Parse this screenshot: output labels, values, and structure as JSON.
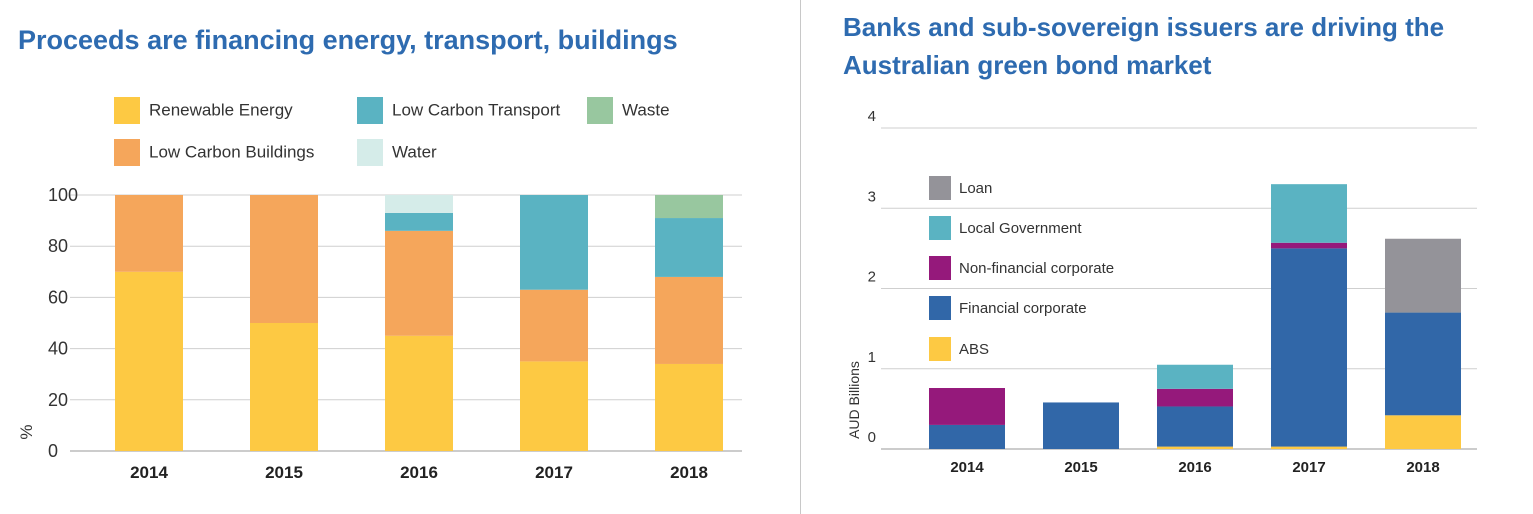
{
  "left": {
    "title": "Proceeds are financing energy, transport, buildings"
  },
  "right": {
    "title": "Banks and sub-sovereign issuers are driving the Australian green bond market"
  },
  "chart_data": [
    {
      "type": "bar",
      "stacked": true,
      "title": "Proceeds are financing energy, transport, buildings",
      "ylabel": "%",
      "xlabel": "",
      "ylim": [
        0,
        100
      ],
      "yticks": [
        0,
        20,
        40,
        60,
        80,
        100
      ],
      "grid": true,
      "legend_position": "top",
      "categories": [
        "2014",
        "2015",
        "2016",
        "2017",
        "2018"
      ],
      "series": [
        {
          "name": "Renewable Energy",
          "color": "#fdc943",
          "values": [
            70,
            50,
            45,
            35,
            34
          ]
        },
        {
          "name": "Low Carbon Buildings",
          "color": "#f5a65b",
          "values": [
            30,
            50,
            41,
            28,
            34
          ]
        },
        {
          "name": "Low Carbon Transport",
          "color": "#5ab3c2",
          "values": [
            0,
            0,
            7,
            37,
            23
          ]
        },
        {
          "name": "Water",
          "color": "#d5ece9",
          "values": [
            0,
            0,
            7,
            0,
            0
          ]
        },
        {
          "name": "Waste",
          "color": "#98c79f",
          "values": [
            0,
            0,
            0,
            0,
            9
          ]
        }
      ],
      "legend_order": [
        "Renewable Energy",
        "Low Carbon Transport",
        "Waste",
        "Low Carbon Buildings",
        "Water"
      ]
    },
    {
      "type": "bar",
      "stacked": true,
      "title": "Banks and sub-sovereign issuers are driving the Australian green bond market",
      "ylabel": "AUD Billions",
      "xlabel": "",
      "ylim": [
        0,
        4
      ],
      "yticks": [
        0,
        1,
        2,
        3,
        4
      ],
      "grid": true,
      "legend_position": "top-left",
      "categories": [
        "2014",
        "2015",
        "2016",
        "2017",
        "2018"
      ],
      "series": [
        {
          "name": "ABS",
          "color": "#fdc943",
          "values": [
            0,
            0,
            0.03,
            0.03,
            0.42
          ]
        },
        {
          "name": "Financial corporate",
          "color": "#3167a8",
          "values": [
            0.3,
            0.58,
            0.5,
            2.47,
            1.28
          ]
        },
        {
          "name": "Non-financial corporate",
          "color": "#95197b",
          "values": [
            0.46,
            0,
            0.22,
            0.07,
            0
          ]
        },
        {
          "name": "Local Government",
          "color": "#5ab3c2",
          "values": [
            0,
            0,
            0.3,
            0.73,
            0
          ]
        },
        {
          "name": "Loan",
          "color": "#949399",
          "values": [
            0,
            0,
            0,
            0,
            0.92
          ]
        }
      ],
      "legend_order": [
        "Loan",
        "Local Government",
        "Non-financial corporate",
        "Financial corporate",
        "ABS"
      ]
    }
  ]
}
